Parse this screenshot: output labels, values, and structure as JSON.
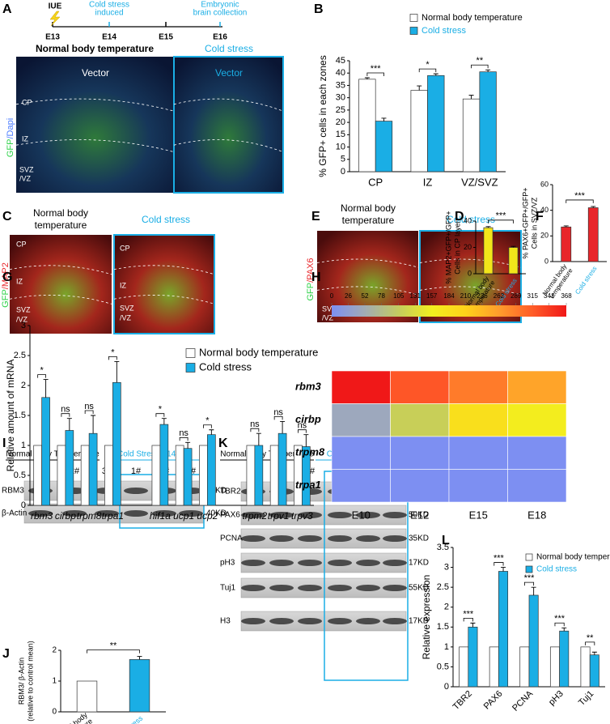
{
  "figure": {
    "A": {
      "letter": "A",
      "iue": "IUE",
      "event1": [
        "Cold stress",
        "induced"
      ],
      "event2": [
        "Embryonic",
        "brain collection"
      ],
      "days": [
        "E13",
        "E14",
        "E15",
        "E16"
      ],
      "titles": [
        "Normal body temperature",
        "Cold stress"
      ],
      "vector": [
        "Vector",
        "Vector"
      ],
      "stain": [
        "GFP",
        "/Dapi"
      ],
      "zones": [
        "CP",
        "IZ",
        "SVZ",
        "/VZ"
      ]
    },
    "C": {
      "letter": "C",
      "title1": [
        "Normal body",
        "temperature"
      ],
      "title2": "Cold stress",
      "stain": [
        "GFP",
        "/MAP2"
      ],
      "zones1": [
        "CP",
        "IZ",
        "SVZ",
        "/VZ"
      ],
      "zones2": [
        "CP",
        "IZ",
        "SVZ",
        "/VZ"
      ]
    },
    "E": {
      "letter": "E",
      "title1": [
        "Normal body",
        "temperature"
      ],
      "title2": "Cold stress",
      "stain": [
        "GFP",
        "/PAX6"
      ],
      "zones": [
        "SVZ",
        "/VZ"
      ]
    },
    "I": {
      "letter": "I",
      "group1": "Normal body Temperature",
      "group2": "Cold Stress E14E16",
      "lanes": [
        "1#",
        "2#",
        "3#",
        "1#",
        "2#",
        "3#"
      ],
      "rows": [
        "RBM3",
        "β-Actin"
      ],
      "sizes": [
        "15KD",
        "40KD"
      ]
    },
    "K": {
      "letter": "K",
      "group1": "Normal body Temperature",
      "group2": "Cold stress E14E16",
      "lanes": [
        "1#",
        "2#",
        "3#",
        "1#",
        "2#",
        "3#"
      ],
      "rows": [
        "TBR2",
        "PAX6",
        "PCNA",
        "pH3",
        "Tuj1",
        "H3"
      ],
      "sizes": [
        "90KD",
        "50KD",
        "35KD",
        "17KD",
        "55KD",
        "17KD"
      ]
    }
  },
  "chart_data": [
    {
      "type": "bar",
      "panel": "B",
      "y_label": "% GFP+ cells in each zones",
      "categories": [
        "CP",
        "IZ",
        "VZ/SVZ"
      ],
      "series": [
        {
          "name": "Normal body temperature",
          "color": "#ffffff",
          "values": [
            37.5,
            33,
            29.5
          ],
          "errors": [
            0.6,
            1.8,
            1.5
          ]
        },
        {
          "name": "Cold stress",
          "color": "#1aaee5",
          "values": [
            20.5,
            39,
            40.5
          ],
          "errors": [
            1.2,
            0.7,
            0.8
          ]
        }
      ],
      "legend_text_colors": [
        "#000000",
        "#1aaee5"
      ],
      "significance": [
        "***",
        "*",
        "**"
      ],
      "ylim": [
        0,
        45
      ],
      "yticks": [
        0,
        5,
        10,
        15,
        20,
        25,
        30,
        35,
        40,
        45
      ],
      "legend": "top-right"
    },
    {
      "type": "bar",
      "panel": "D",
      "y_label": [
        "% MAP2+GFP+/GFP+",
        "Cells in CP layer"
      ],
      "categories": [
        "Normal body temperature",
        "Cold stress"
      ],
      "category_colors": [
        "#000000",
        "#1aaee5"
      ],
      "values": [
        35,
        20
      ],
      "errors": [
        0.8,
        0.8
      ],
      "colors": [
        "#f2e51a",
        "#f2e51a"
      ],
      "significance": [
        "***"
      ],
      "ylim": [
        0,
        40
      ],
      "yticks": [
        0,
        20,
        40
      ]
    },
    {
      "type": "bar",
      "panel": "F",
      "y_label": [
        "% PAX6+GFP+/GFP+",
        "Cells in SVZ/VZ"
      ],
      "categories": [
        "Normal body temperature",
        "Cold stress"
      ],
      "category_colors": [
        "#000000",
        "#1aaee5"
      ],
      "values": [
        27,
        42
      ],
      "errors": [
        0.8,
        1.0
      ],
      "colors": [
        "#e8262a",
        "#e8262a"
      ],
      "significance": [
        "***"
      ],
      "ylim": [
        0,
        60
      ],
      "yticks": [
        0,
        20,
        40,
        60
      ]
    },
    {
      "type": "bar",
      "panel": "G",
      "y_label": "Relative amount of mRNA",
      "categories": [
        "rbm3",
        "cirbp",
        "trpm8",
        "trpa1",
        null,
        "hif1a",
        "ucp1",
        "ucp2",
        null,
        "trpm2",
        "trpv1",
        "trpv3"
      ],
      "series": [
        {
          "name": "Normal body temperature",
          "color": "#ffffff",
          "values": [
            1,
            1,
            1,
            1,
            null,
            1,
            1,
            1,
            null,
            1,
            1,
            1
          ]
        },
        {
          "name": "Cold stress",
          "color": "#1aaee5",
          "values": [
            1.8,
            1.25,
            1.2,
            2.05,
            null,
            1.35,
            0.95,
            1.18,
            null,
            1.0,
            1.2,
            0.98
          ],
          "errors": [
            0.3,
            0.2,
            0.3,
            0.35,
            null,
            0.1,
            0.1,
            0.08,
            null,
            0.2,
            0.2,
            0.2
          ]
        }
      ],
      "significance": [
        "*",
        "ns",
        "ns",
        "*",
        null,
        "*",
        "ns",
        "*",
        null,
        "ns",
        "ns",
        "ns"
      ],
      "italic_categories": true,
      "ylim": [
        0,
        3
      ],
      "yticks": [
        0,
        0.5,
        1,
        1.5,
        2,
        2.5,
        3
      ],
      "legend": "top-right"
    },
    {
      "type": "heatmap",
      "panel": "H",
      "rows": [
        "rbm3",
        "cirbp",
        "trpm8",
        "trpa1"
      ],
      "columns": [
        "E10",
        "E12",
        "E15",
        "E18"
      ],
      "values": [
        [
          368,
          320,
          290,
          255
        ],
        [
          45,
          110,
          185,
          160
        ],
        [
          0,
          0,
          0,
          0
        ],
        [
          0,
          0,
          0,
          0
        ]
      ],
      "clim": [
        0,
        368
      ],
      "colorbar_ticks": [
        0,
        26,
        52,
        78,
        105,
        131,
        157,
        184,
        210,
        236,
        262,
        289,
        315,
        341,
        368
      ],
      "colormap": [
        "#7d8ff2",
        "#a2acb4",
        "#c4cc5e",
        "#f2ee1e",
        "#ffd21a",
        "#ff9c2c",
        "#ff5c28",
        "#f01818"
      ]
    },
    {
      "type": "bar",
      "panel": "J",
      "y_label": [
        "RBM3/ β-Actin",
        "(relative to control mean)"
      ],
      "categories": [
        "Normal body Temperature",
        "Cold stress"
      ],
      "category_colors": [
        "#000000",
        "#1aaee5"
      ],
      "values": [
        1,
        1.7
      ],
      "errors": [
        null,
        0.1
      ],
      "colors": [
        "#ffffff",
        "#1aaee5"
      ],
      "significance": [
        "**"
      ],
      "ylim": [
        0,
        2
      ],
      "yticks": [
        0,
        1,
        2
      ]
    },
    {
      "type": "bar",
      "panel": "L",
      "y_label": "Relative expression",
      "categories": [
        "TBR2",
        "PAX6",
        "PCNA",
        "pH3",
        "Tuj1"
      ],
      "series": [
        {
          "name": "Normal body temperature",
          "color": "#ffffff",
          "values": [
            1,
            1,
            1,
            1,
            1
          ]
        },
        {
          "name": "Cold stress",
          "color": "#1aaee5",
          "values": [
            1.5,
            2.9,
            2.3,
            1.4,
            0.8
          ],
          "errors": [
            0.1,
            0.1,
            0.2,
            0.08,
            0.07
          ]
        }
      ],
      "legend_text_colors": [
        "#000000",
        "#1aaee5"
      ],
      "significance": [
        "***",
        "***",
        "***",
        "***",
        "**"
      ],
      "ylim": [
        0,
        3.5
      ],
      "yticks": [
        0,
        0.5,
        1,
        1.5,
        2,
        2.5,
        3,
        3.5
      ],
      "legend": "top-right"
    }
  ]
}
